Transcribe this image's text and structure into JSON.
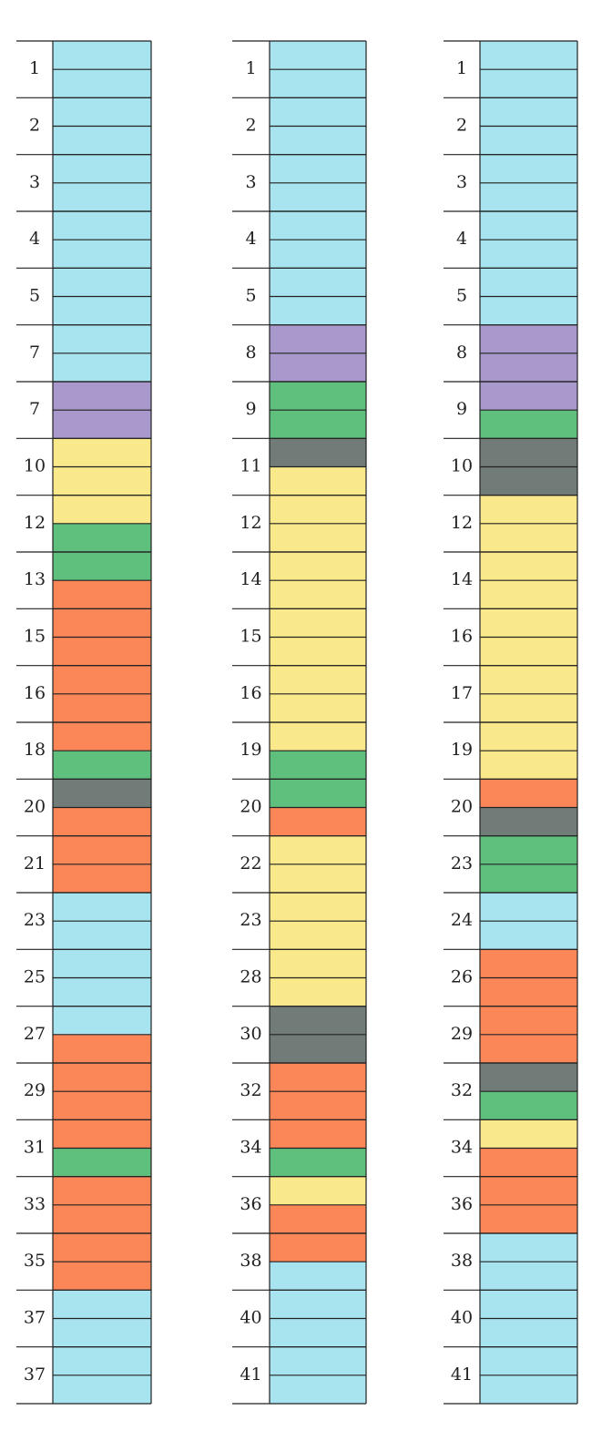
{
  "columns": [
    {
      "labels": [
        "1",
        "2",
        "3",
        "4",
        "5",
        "7",
        "7",
        "10",
        "12",
        "13",
        "15",
        "16",
        "18",
        "20",
        "21",
        "23",
        "25",
        "27",
        "29",
        "31",
        "33",
        "35",
        "37",
        "37"
      ],
      "cells": [
        "#a8e4f0",
        "#a8e4f0",
        "#a8e4f0",
        "#a8e4f0",
        "#a8e4f0",
        "#a8e4f0",
        "#a8e4f0",
        "#a8e4f0",
        "#a8e4f0",
        "#a8e4f0",
        "#a8e4f0",
        "#a8e4f0",
        "#a898cc",
        "#a898cc",
        "#f9e98a",
        "#f9e98a",
        "#f9e98a",
        "#5fc07e",
        "#5fc07e",
        "#fb8658",
        "#fb8658",
        "#fb8658",
        "#fb8658",
        "#fb8658",
        "#fb8658",
        "#5fc07e",
        "#717c78",
        "#fb8658",
        "#fb8658",
        "#fb8658",
        "#a8e4f0",
        "#a8e4f0",
        "#a8e4f0",
        "#a8e4f0",
        "#a8e4f0",
        "#fb8658",
        "#fb8658",
        "#fb8658",
        "#fb8658",
        "#5fc07e",
        "#fb8658",
        "#fb8658",
        "#fb8658",
        "#fb8658",
        "#a8e4f0",
        "#a8e4f0",
        "#a8e4f0",
        "#a8e4f0"
      ]
    },
    {
      "labels": [
        "1",
        "2",
        "3",
        "4",
        "5",
        "8",
        "9",
        "11",
        "12",
        "14",
        "15",
        "16",
        "19",
        "20",
        "22",
        "23",
        "28",
        "30",
        "32",
        "34",
        "36",
        "38",
        "40",
        "41"
      ],
      "cells": [
        "#a8e4f0",
        "#a8e4f0",
        "#a8e4f0",
        "#a8e4f0",
        "#a8e4f0",
        "#a8e4f0",
        "#a8e4f0",
        "#a8e4f0",
        "#a8e4f0",
        "#a8e4f0",
        "#a898cc",
        "#a898cc",
        "#5fc07e",
        "#5fc07e",
        "#717c78",
        "#f9e98a",
        "#f9e98a",
        "#f9e98a",
        "#f9e98a",
        "#f9e98a",
        "#f9e98a",
        "#f9e98a",
        "#f9e98a",
        "#f9e98a",
        "#f9e98a",
        "#5fc07e",
        "#5fc07e",
        "#fb8658",
        "#f9e98a",
        "#f9e98a",
        "#f9e98a",
        "#f9e98a",
        "#f9e98a",
        "#f9e98a",
        "#717c78",
        "#717c78",
        "#fb8658",
        "#fb8658",
        "#fb8658",
        "#5fc07e",
        "#f9e98a",
        "#fb8658",
        "#fb8658",
        "#a8e4f0",
        "#a8e4f0",
        "#a8e4f0",
        "#a8e4f0",
        "#a8e4f0"
      ]
    },
    {
      "labels": [
        "1",
        "2",
        "3",
        "4",
        "5",
        "8",
        "9",
        "10",
        "12",
        "14",
        "16",
        "17",
        "19",
        "20",
        "23",
        "24",
        "26",
        "29",
        "32",
        "34",
        "36",
        "38",
        "40",
        "41"
      ],
      "cells": [
        "#a8e4f0",
        "#a8e4f0",
        "#a8e4f0",
        "#a8e4f0",
        "#a8e4f0",
        "#a8e4f0",
        "#a8e4f0",
        "#a8e4f0",
        "#a8e4f0",
        "#a8e4f0",
        "#a898cc",
        "#a898cc",
        "#a898cc",
        "#5fc07e",
        "#717c78",
        "#717c78",
        "#f9e98a",
        "#f9e98a",
        "#f9e98a",
        "#f9e98a",
        "#f9e98a",
        "#f9e98a",
        "#f9e98a",
        "#f9e98a",
        "#f9e98a",
        "#f9e98a",
        "#fb8658",
        "#717c78",
        "#5fc07e",
        "#5fc07e",
        "#a8e4f0",
        "#a8e4f0",
        "#fb8658",
        "#fb8658",
        "#fb8658",
        "#fb8658",
        "#717c78",
        "#5fc07e",
        "#f9e98a",
        "#fb8658",
        "#fb8658",
        "#fb8658",
        "#a8e4f0",
        "#a8e4f0",
        "#a8e4f0",
        "#a8e4f0",
        "#a8e4f0",
        "#a8e4f0"
      ]
    }
  ]
}
